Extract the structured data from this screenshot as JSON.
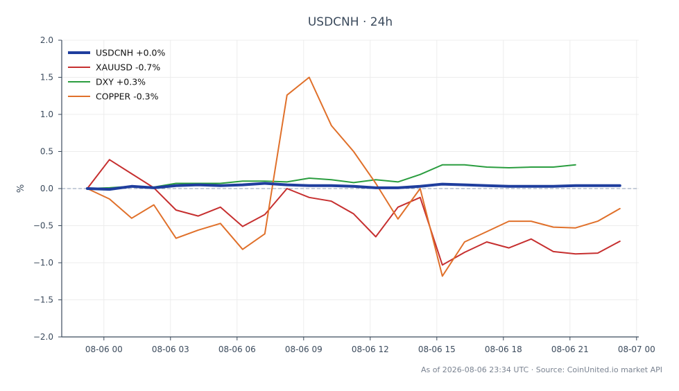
{
  "chart_data": {
    "type": "line",
    "title": "USDCNH · 24h",
    "ylabel": "%",
    "xlabel": "",
    "ylim": [
      -2.0,
      2.0
    ],
    "xlim": [
      "08-05 22:06",
      "08-07 00:06"
    ],
    "x_ticks": [
      "08-06 00",
      "08-06 03",
      "08-06 06",
      "08-06 09",
      "08-06 12",
      "08-06 15",
      "08-06 18",
      "08-06 21",
      "08-07 00"
    ],
    "y_ticks": [
      "2.0",
      "1.5",
      "1.0",
      "0.5",
      "0.0",
      "−0.5",
      "−1.0",
      "−1.5",
      "−2.0"
    ],
    "grid": true,
    "zero_line": true,
    "legend_position": "top-left",
    "x": [
      "08-05 23:15",
      "08-06 00:15",
      "08-06 01:15",
      "08-06 02:15",
      "08-06 03:15",
      "08-06 04:15",
      "08-06 05:15",
      "08-06 06:15",
      "08-06 07:15",
      "08-06 08:15",
      "08-06 09:15",
      "08-06 10:15",
      "08-06 11:15",
      "08-06 12:15",
      "08-06 13:15",
      "08-06 14:15",
      "08-06 15:15",
      "08-06 16:15",
      "08-06 17:15",
      "08-06 18:15",
      "08-06 19:15",
      "08-06 20:15",
      "08-06 21:15",
      "08-06 22:15",
      "08-06 23:15"
    ],
    "series": [
      {
        "name": "USDCNH +0.0%",
        "color": "#1f3e9e",
        "width": 4,
        "values": [
          0.0,
          -0.01,
          0.03,
          0.01,
          0.04,
          0.05,
          0.04,
          0.05,
          0.07,
          0.05,
          0.04,
          0.04,
          0.03,
          0.01,
          0.01,
          0.03,
          0.06,
          0.05,
          0.04,
          0.03,
          0.03,
          0.03,
          0.04,
          0.04,
          0.04
        ]
      },
      {
        "name": "XAUUSD -0.7%",
        "color": "#c62f2f",
        "width": 2,
        "values": [
          0.0,
          0.39,
          0.2,
          0.01,
          -0.29,
          -0.37,
          -0.25,
          -0.51,
          -0.35,
          0.0,
          -0.12,
          -0.17,
          -0.34,
          -0.65,
          -0.25,
          -0.12,
          -1.03,
          -0.86,
          -0.72,
          -0.8,
          -0.68,
          -0.85,
          -0.88,
          -0.87,
          -0.71
        ]
      },
      {
        "name": "DXY +0.3%",
        "color": "#2a9d3f",
        "width": 2,
        "values": [
          0.0,
          0.01,
          0.03,
          0.02,
          0.07,
          0.07,
          0.07,
          0.1,
          0.1,
          0.09,
          0.14,
          0.12,
          0.08,
          0.12,
          0.09,
          0.19,
          0.32,
          0.32,
          0.29,
          0.28,
          0.29,
          0.29,
          0.32,
          null,
          null
        ]
      },
      {
        "name": "COPPER -0.3%",
        "color": "#e0702a",
        "width": 2,
        "values": [
          0.0,
          -0.14,
          -0.4,
          -0.22,
          -0.67,
          -0.56,
          -0.47,
          -0.82,
          -0.61,
          1.26,
          1.5,
          0.85,
          0.5,
          0.07,
          -0.41,
          0.0,
          -1.18,
          -0.72,
          -0.58,
          -0.44,
          -0.44,
          -0.52,
          -0.53,
          -0.44,
          -0.27
        ]
      }
    ]
  },
  "footer": "As of 2026-08-06 23:34 UTC · Source: CoinUnited.io market API"
}
